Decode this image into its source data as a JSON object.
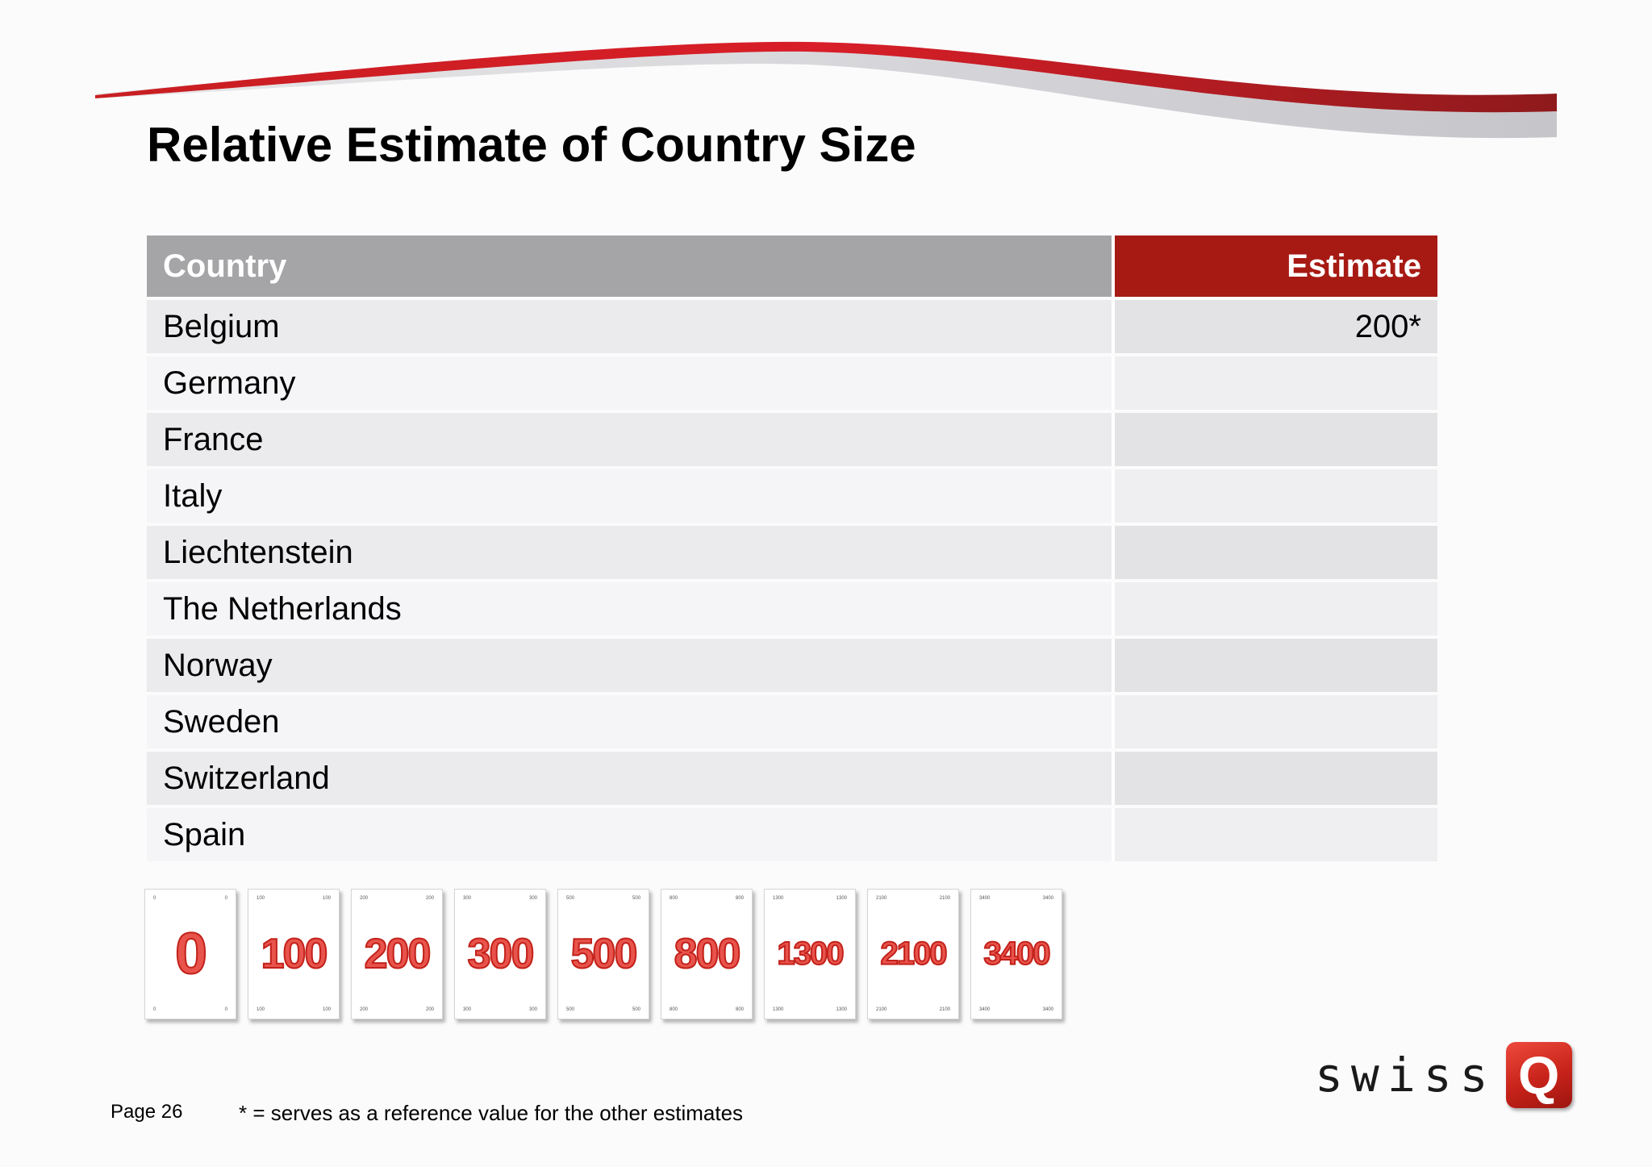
{
  "slide": {
    "title": "Relative Estimate of Country Size",
    "page_label": "Page 26",
    "footnote": "* = serves as a reference value for the other estimates"
  },
  "table": {
    "headers": {
      "country": "Country",
      "estimate": "Estimate"
    },
    "rows": [
      {
        "country": "Belgium",
        "estimate": "200*"
      },
      {
        "country": "Germany",
        "estimate": ""
      },
      {
        "country": "France",
        "estimate": ""
      },
      {
        "country": "Italy",
        "estimate": ""
      },
      {
        "country": "Liechtenstein",
        "estimate": ""
      },
      {
        "country": "The Netherlands",
        "estimate": ""
      },
      {
        "country": "Norway",
        "estimate": ""
      },
      {
        "country": "Sweden",
        "estimate": ""
      },
      {
        "country": "Switzerland",
        "estimate": ""
      },
      {
        "country": "Spain",
        "estimate": ""
      }
    ]
  },
  "cards": [
    "0",
    "100",
    "200",
    "300",
    "500",
    "800",
    "1300",
    "2100",
    "3400"
  ],
  "logo": {
    "text": "swiss",
    "mark": "Q"
  },
  "colors": {
    "header_country_bg": "#a5a4a6",
    "header_estimate_bg": "#a71a14",
    "accent_red": "#c2221a"
  }
}
